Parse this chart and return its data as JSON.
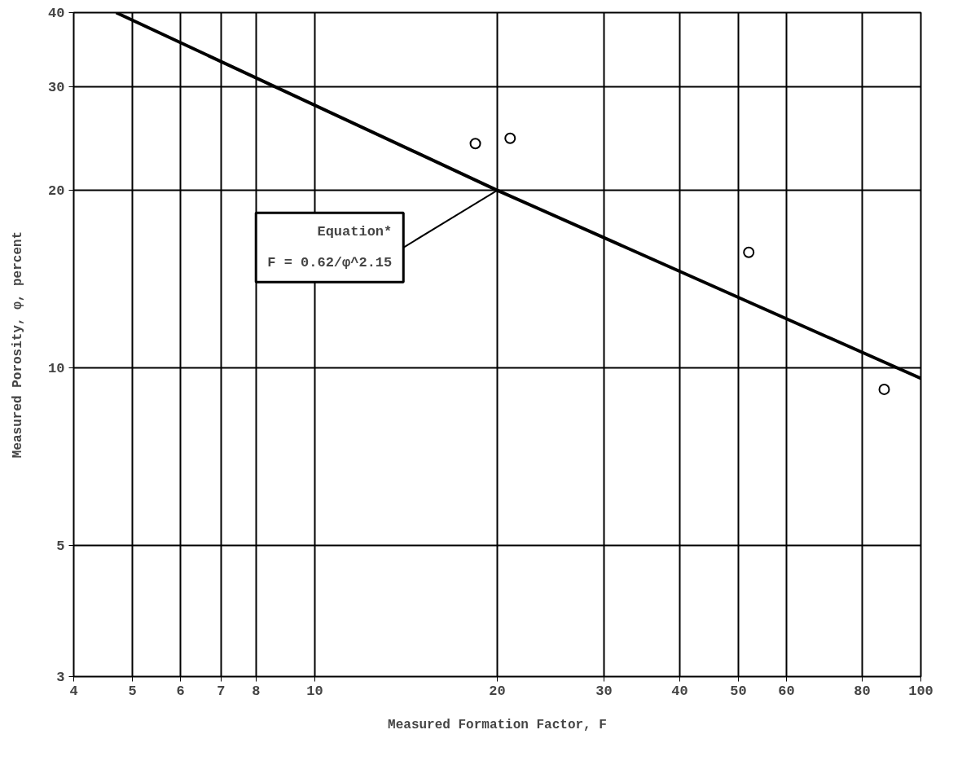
{
  "chart_data": {
    "type": "scatter",
    "xlabel": "Measured Formation Factor, F",
    "ylabel": "Measured Porosity, φ, percent",
    "log": "xy",
    "grid": true,
    "xlim": [
      4,
      100
    ],
    "xticks": [
      4,
      5,
      6,
      7,
      8,
      10,
      20,
      30,
      40,
      50,
      60,
      80,
      100
    ],
    "ylim": [
      3,
      40
    ],
    "yticks": [
      3,
      5,
      10,
      20,
      30,
      40
    ],
    "series": [
      {
        "marker": "circle",
        "color": "#000000",
        "x": [
          18.4,
          21,
          52,
          87
        ],
        "values": [
          24,
          24.5,
          15.7,
          9.2
        ]
      },
      {
        "type": "line",
        "color": "#000000",
        "x": [
          4.7,
          20,
          100
        ],
        "values": [
          40,
          20,
          9.6
        ]
      }
    ],
    "annotations": [
      {
        "text": "Equation*\nF = 0.62/φ^2.15",
        "x": 20,
        "y": 20
      }
    ]
  }
}
